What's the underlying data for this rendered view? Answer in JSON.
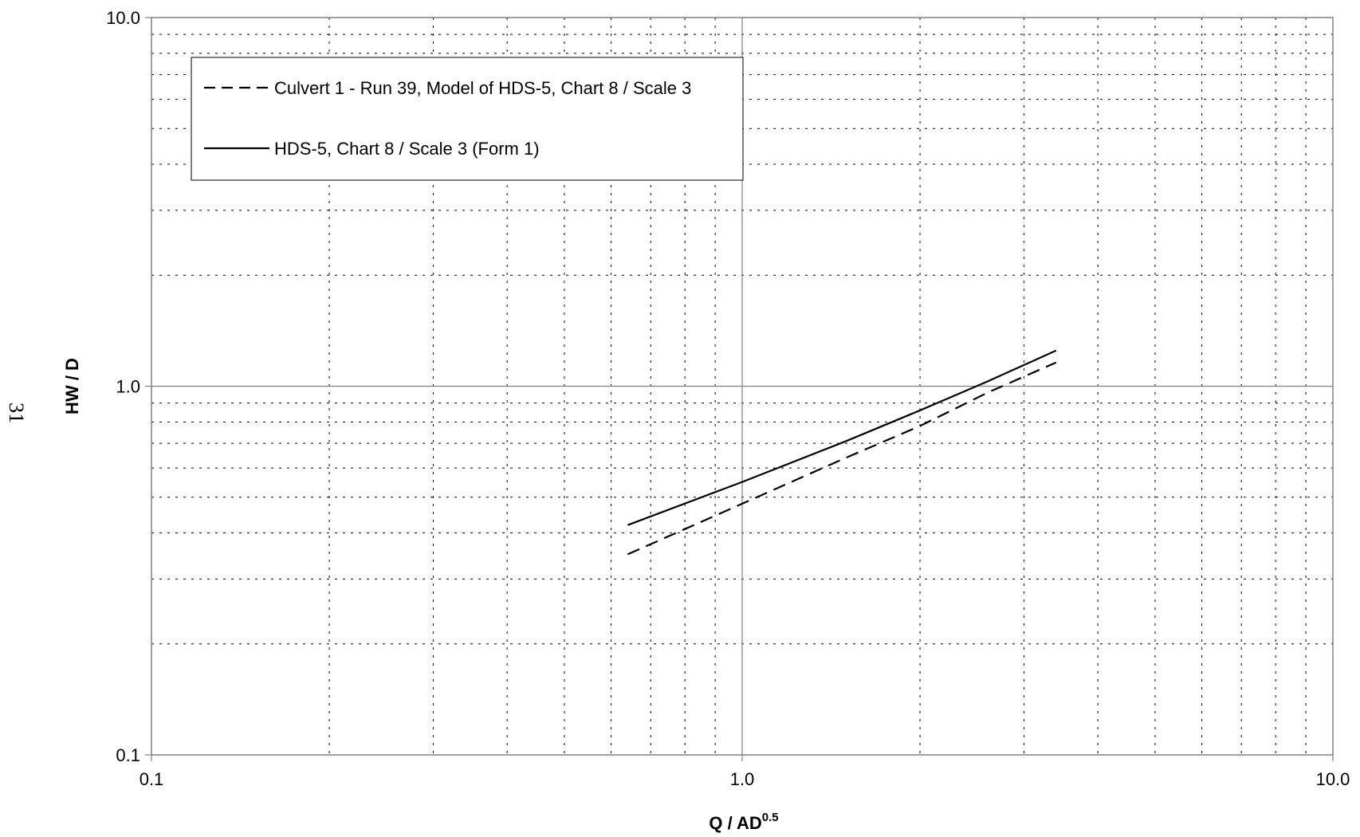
{
  "page_number": "31",
  "chart_data": {
    "type": "line",
    "xscale": "log",
    "yscale": "log",
    "xlim": [
      0.1,
      10.0
    ],
    "ylim": [
      0.1,
      10.0
    ],
    "x_tick_labels": [
      "0.1",
      "1.0",
      "10.0"
    ],
    "y_tick_labels": [
      "0.1",
      "1.0",
      "10.0"
    ],
    "xlabel": "Q / AD",
    "xlabel_sup": "0.5",
    "ylabel": "HW / D",
    "grid": true,
    "legend_position": "top-left",
    "series": [
      {
        "name": "Culvert 1 - Run 39, Model of HDS-5, Chart 8 / Scale 3",
        "style": "dashed",
        "color": "#000000",
        "x": [
          0.64,
          1.0,
          1.5,
          2.0,
          2.6,
          3.4
        ],
        "y": [
          0.35,
          0.48,
          0.64,
          0.78,
          0.96,
          1.16
        ]
      },
      {
        "name": "HDS-5, Chart 8 / Scale 3 (Form 1)",
        "style": "solid",
        "color": "#000000",
        "x": [
          0.64,
          1.0,
          1.5,
          2.0,
          2.6,
          3.4
        ],
        "y": [
          0.42,
          0.55,
          0.71,
          0.86,
          1.03,
          1.25
        ]
      }
    ]
  }
}
